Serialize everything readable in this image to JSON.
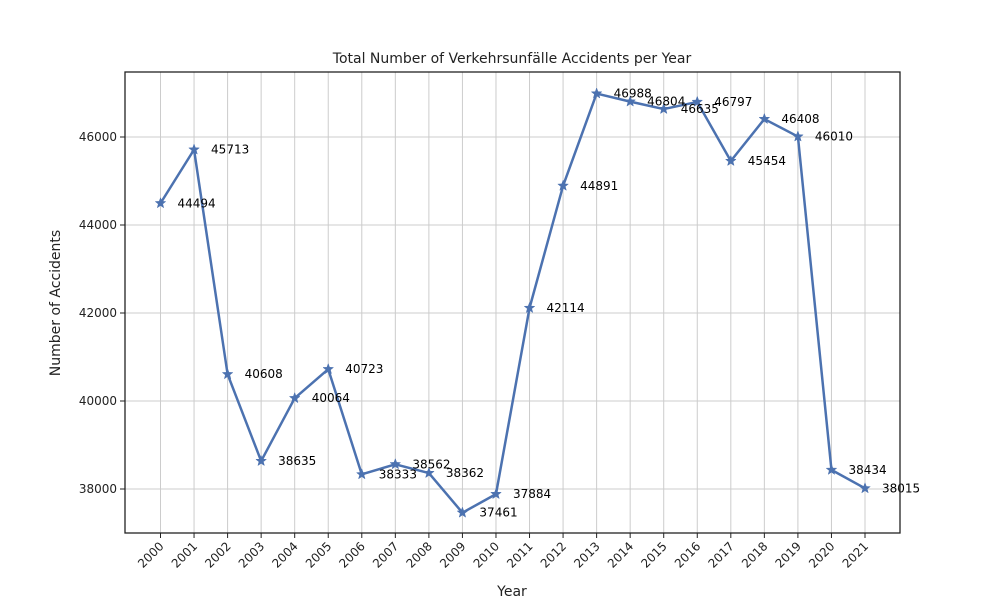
{
  "chart_data": {
    "type": "line",
    "title": "Total Number of Verkehrsunfälle Accidents per Year",
    "xlabel": "Year",
    "ylabel": "Number of Accidents",
    "categories": [
      "2000",
      "2001",
      "2002",
      "2003",
      "2004",
      "2005",
      "2006",
      "2007",
      "2008",
      "2009",
      "2010",
      "2011",
      "2012",
      "2013",
      "2014",
      "2015",
      "2016",
      "2017",
      "2018",
      "2019",
      "2020",
      "2021"
    ],
    "series": [
      {
        "values": [
          44494,
          45713,
          40608,
          38635,
          40064,
          40723,
          38333,
          38562,
          38362,
          37461,
          37884,
          42114,
          44891,
          46988,
          46804,
          46635,
          46797,
          45454,
          46408,
          46010,
          38434,
          38015
        ],
        "color": "#4c72b0",
        "marker": "star"
      }
    ],
    "yticks": [
      38000,
      40000,
      42000,
      44000,
      46000
    ],
    "ylim": [
      37000,
      47500
    ],
    "grid": true,
    "data_labels": true
  }
}
